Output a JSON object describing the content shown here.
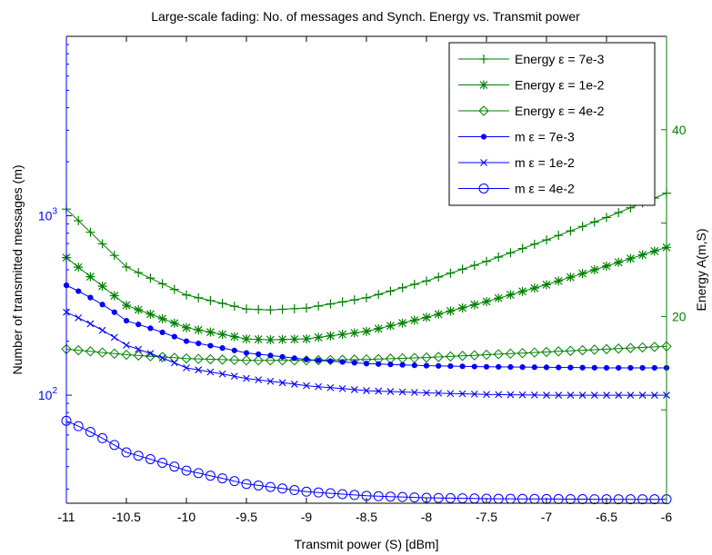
{
  "chart_data": {
    "type": "line",
    "title": "Large-scale fading: No. of messages and Synch. Energy vs. Transmit power",
    "xlabel": "Transmit power (S) [dBm]",
    "ylabel_left": "Number of transmitted messages (m)",
    "ylabel_right": "Energy A(m,S)",
    "xlim": [
      -11,
      -6
    ],
    "x_ticks": [
      -11,
      -10.5,
      -10,
      -9.5,
      -9,
      -8.5,
      -8,
      -7.5,
      -7,
      -6.5,
      -6
    ],
    "x_tick_labels": [
      "-11",
      "-10.5",
      "-10",
      "-9.5",
      "-9",
      "-8.5",
      "-8",
      "-7.5",
      "-7",
      "-6.5",
      "-6"
    ],
    "ylim_left": [
      25,
      10000
    ],
    "yscale_left": "log",
    "y_ticks_left": [
      {
        "value": 100,
        "base": "10",
        "exp": "2"
      },
      {
        "value": 1000,
        "base": "10",
        "exp": "3"
      }
    ],
    "ylim_right": [
      0,
      50
    ],
    "y_ticks_right": [
      {
        "value": 20,
        "label": "20"
      },
      {
        "value": 40,
        "label": "40"
      }
    ],
    "grid": false,
    "legend_position": "top-right",
    "series": [
      {
        "name": "Energy ε = 7e-3",
        "axis": "right",
        "color": "#008000",
        "marker": "plus",
        "x_range": [
          -11,
          -6
        ],
        "x_step": 0.1,
        "anchors": [
          [
            -11,
            31.5
          ],
          [
            -10.5,
            25.3
          ],
          [
            -10,
            22.3
          ],
          [
            -9.5,
            20.8
          ],
          [
            -9.3,
            20.7
          ],
          [
            -9,
            20.9
          ],
          [
            -8.5,
            22.0
          ],
          [
            -8,
            23.8
          ],
          [
            -7.5,
            25.9
          ],
          [
            -7,
            28.2
          ],
          [
            -6.5,
            30.6
          ],
          [
            -6,
            33.2
          ]
        ]
      },
      {
        "name": "Energy ε = 1e-2",
        "axis": "right",
        "color": "#008000",
        "marker": "star",
        "x_range": [
          -11,
          -6
        ],
        "x_step": 0.1,
        "anchors": [
          [
            -11,
            26.3
          ],
          [
            -10.5,
            21.2
          ],
          [
            -10,
            18.8
          ],
          [
            -9.5,
            17.6
          ],
          [
            -9.3,
            17.5
          ],
          [
            -9,
            17.6
          ],
          [
            -8.5,
            18.4
          ],
          [
            -8,
            19.9
          ],
          [
            -7.5,
            21.6
          ],
          [
            -7,
            23.4
          ],
          [
            -6.5,
            25.4
          ],
          [
            -6,
            27.4
          ]
        ]
      },
      {
        "name": "Energy ε = 4e-2",
        "axis": "right",
        "color": "#008000",
        "marker": "diamond",
        "x_range": [
          -11,
          -6
        ],
        "x_step": 0.1,
        "anchors": [
          [
            -11,
            16.5
          ],
          [
            -10.5,
            15.9
          ],
          [
            -10,
            15.5
          ],
          [
            -9.5,
            15.3
          ],
          [
            -9,
            15.3
          ],
          [
            -8.5,
            15.4
          ],
          [
            -8,
            15.6
          ],
          [
            -7.5,
            15.9
          ],
          [
            -7,
            16.2
          ],
          [
            -6.5,
            16.5
          ],
          [
            -6,
            16.8
          ]
        ]
      },
      {
        "name": "m ε = 7e-3",
        "axis": "left",
        "color": "#0000ff",
        "marker": "dot",
        "x_range": [
          -11,
          -6
        ],
        "x_step": 0.1,
        "anchors": [
          [
            -11,
            410
          ],
          [
            -10.5,
            260
          ],
          [
            -10,
            200
          ],
          [
            -9.5,
            172
          ],
          [
            -9,
            158
          ],
          [
            -8.5,
            150
          ],
          [
            -8,
            146
          ],
          [
            -7.5,
            144
          ],
          [
            -7,
            143
          ],
          [
            -6.5,
            142
          ],
          [
            -6,
            142
          ]
        ]
      },
      {
        "name": "m ε = 1e-2",
        "axis": "left",
        "color": "#0000ff",
        "marker": "x",
        "x_range": [
          -11,
          -6
        ],
        "x_step": 0.1,
        "anchors": [
          [
            -11,
            290
          ],
          [
            -10.5,
            190
          ],
          [
            -10,
            142
          ],
          [
            -9.5,
            124
          ],
          [
            -9,
            113
          ],
          [
            -8.5,
            106
          ],
          [
            -8,
            103
          ],
          [
            -7.5,
            101
          ],
          [
            -7,
            100
          ],
          [
            -6.5,
            100
          ],
          [
            -6,
            100
          ]
        ]
      },
      {
        "name": "m ε = 4e-2",
        "axis": "left",
        "color": "#0000ff",
        "marker": "circle",
        "x_range": [
          -11,
          -6
        ],
        "x_step": 0.1,
        "anchors": [
          [
            -11,
            72
          ],
          [
            -10.5,
            48
          ],
          [
            -10,
            38
          ],
          [
            -9.5,
            32
          ],
          [
            -9,
            29
          ],
          [
            -8.5,
            27.5
          ],
          [
            -8,
            26.8
          ],
          [
            -7.5,
            26.5
          ],
          [
            -7,
            26.4
          ],
          [
            -6.5,
            26.3
          ],
          [
            -6,
            26.3
          ]
        ]
      }
    ]
  }
}
